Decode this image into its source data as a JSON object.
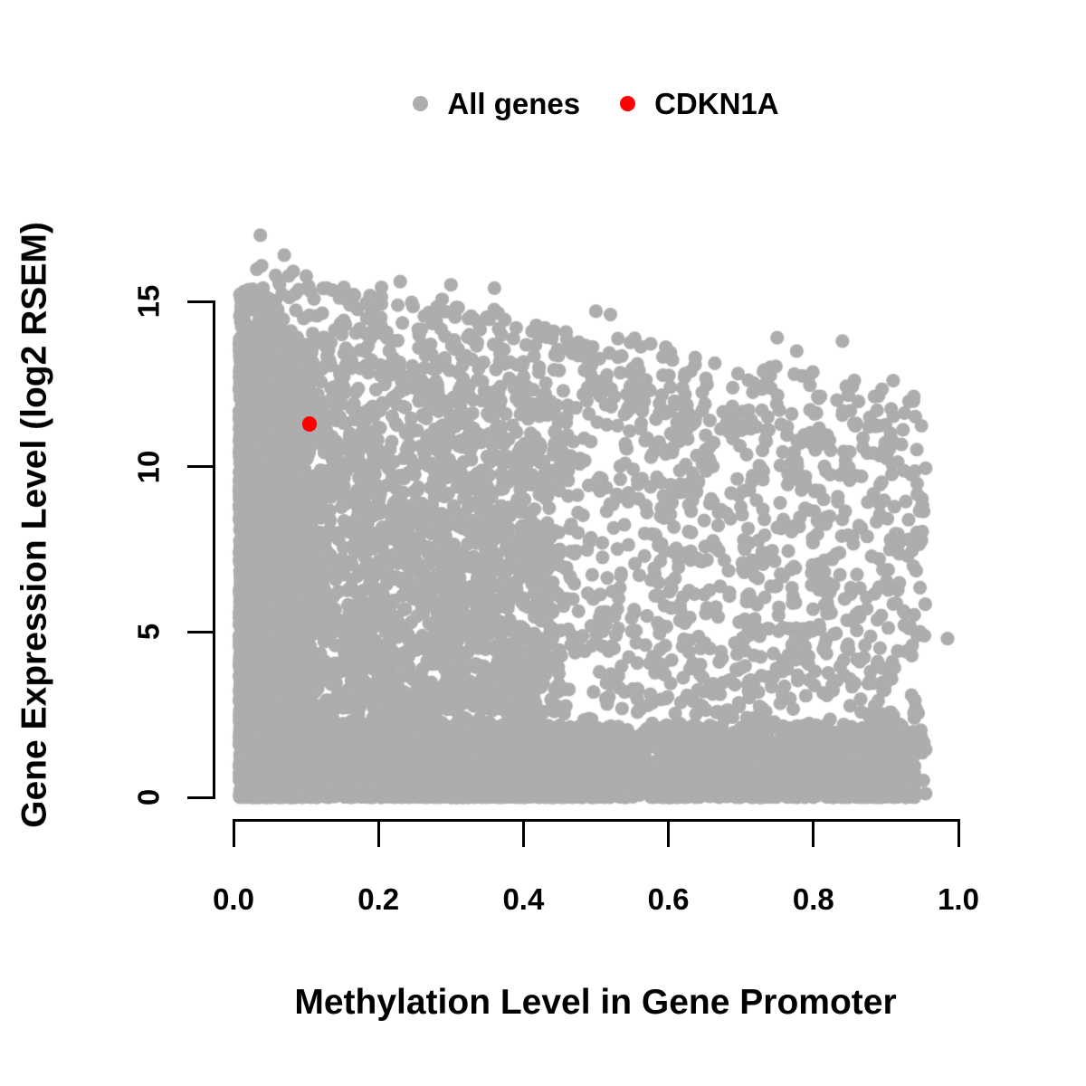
{
  "chart_data": {
    "type": "scatter",
    "title": "",
    "xlabel": "Methylation Level in Gene Promoter",
    "ylabel": "Gene Expression Level (log2 RSEM)",
    "xlim": [
      0,
      1.0
    ],
    "ylim": [
      0,
      17.2
    ],
    "x_ticks": [
      0.0,
      0.2,
      0.4,
      0.6,
      0.8,
      1.0
    ],
    "x_tick_labels": [
      "0.0",
      "0.2",
      "0.4",
      "0.6",
      "0.8",
      "1.0"
    ],
    "y_ticks": [
      0,
      5,
      10,
      15
    ],
    "y_tick_labels": [
      "0",
      "5",
      "10",
      "15"
    ],
    "grid": false,
    "legend_position": "top-center",
    "axis_color": "#000000",
    "background_color": "#ffffff",
    "series": [
      {
        "name": "All genes",
        "color": "#ADADAD",
        "marker": "filled-circle",
        "n_points_approx": 20000,
        "summary": "Very dense cloud: x from 0.01 to 0.955, y from 0 to 17. Density highest at low methylation (x<0.3 nearly solid), decreasing toward x=0.95. Dense-mass upper boundary ~13.9-4.0x; sparse fringe up to ~16.3-4.3x. Solid band along y=0 across full x range.",
        "notable_points": [
          [
            0.037,
            17.0
          ],
          [
            0.07,
            16.4
          ],
          [
            0.23,
            15.6
          ],
          [
            0.3,
            15.5
          ],
          [
            0.36,
            15.4
          ],
          [
            0.39,
            14.2
          ],
          [
            0.5,
            14.7
          ],
          [
            0.52,
            14.6
          ],
          [
            0.637,
            13.3
          ],
          [
            0.75,
            13.9
          ],
          [
            0.777,
            13.5
          ],
          [
            0.84,
            13.8
          ],
          [
            0.91,
            12.6
          ],
          [
            0.985,
            4.8
          ],
          [
            0.012,
            1.2
          ]
        ],
        "generator": {
          "seed": 42,
          "n_bulk": 6000,
          "n_fringe": 450,
          "n_bottom": 2800,
          "n_left_column": 800,
          "dense_top_intercept": 13.9,
          "dense_top_slope": -4.0,
          "fringe_top_intercept": 16.3,
          "fringe_top_slope": -4.3,
          "x_max": 0.955,
          "x_min": 0.008
        }
      },
      {
        "name": "CDKN1A",
        "color": "#FF0000",
        "marker": "filled-circle",
        "points": [
          [
            0.105,
            11.3
          ]
        ]
      }
    ]
  }
}
